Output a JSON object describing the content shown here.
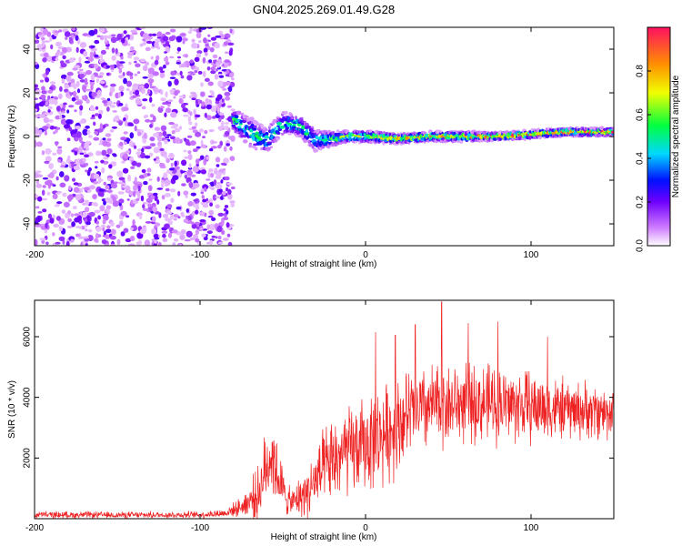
{
  "title": "GN04.2025.269.01.49.G28",
  "chart_data": [
    {
      "type": "heatmap",
      "title": "GN04.2025.269.01.49.G28",
      "xlabel": "Height of straight line (km)",
      "ylabel": "Frequency (Hz)",
      "xlim": [
        -200,
        150
      ],
      "ylim": [
        -50,
        50
      ],
      "xticks": [
        -200,
        -100,
        0,
        100
      ],
      "xtick_labels": [
        "-200",
        "-100",
        "0",
        "100"
      ],
      "yticks": [
        -40,
        -20,
        0,
        20,
        40
      ],
      "ytick_labels": [
        "-40",
        "-20",
        "0",
        "20",
        "40"
      ],
      "colorbar": {
        "label": "Normalized spectral amplitude",
        "range": [
          0.0,
          1.0
        ],
        "ticks": [
          0.0,
          0.2,
          0.4,
          0.6,
          0.8
        ],
        "tick_labels": [
          "0.0",
          "0.2",
          "0.4",
          "0.6",
          "0.8"
        ]
      },
      "noise_region_end_km": -80,
      "signal_track": [
        {
          "x": -80,
          "freq": 8,
          "spread": 6,
          "amp": 0.55
        },
        {
          "x": -70,
          "freq": 2,
          "spread": 8,
          "amp": 0.5
        },
        {
          "x": -60,
          "freq": -2,
          "spread": 7,
          "amp": 0.5
        },
        {
          "x": -50,
          "freq": 6,
          "spread": 6,
          "amp": 0.5
        },
        {
          "x": -40,
          "freq": 5,
          "spread": 6,
          "amp": 0.55
        },
        {
          "x": -30,
          "freq": -2,
          "spread": 6,
          "amp": 0.5
        },
        {
          "x": -20,
          "freq": -1,
          "spread": 4,
          "amp": 0.6
        },
        {
          "x": -10,
          "freq": 0,
          "spread": 3,
          "amp": 0.65
        },
        {
          "x": 0,
          "freq": 0,
          "spread": 3,
          "amp": 0.7
        },
        {
          "x": 20,
          "freq": -1,
          "spread": 2.5,
          "amp": 0.8
        },
        {
          "x": 40,
          "freq": 0,
          "spread": 2.5,
          "amp": 0.85
        },
        {
          "x": 60,
          "freq": 0,
          "spread": 2.5,
          "amp": 0.85
        },
        {
          "x": 80,
          "freq": 0,
          "spread": 2,
          "amp": 0.9
        },
        {
          "x": 100,
          "freq": 1,
          "spread": 2,
          "amp": 0.95
        },
        {
          "x": 120,
          "freq": 2,
          "spread": 2,
          "amp": 0.95
        },
        {
          "x": 150,
          "freq": 2,
          "spread": 2,
          "amp": 0.95
        }
      ]
    },
    {
      "type": "line",
      "xlabel": "Height of straight line (km)",
      "ylabel": "SNR (10 * v/v)",
      "xlim": [
        -200,
        150
      ],
      "ylim": [
        0,
        7200
      ],
      "xticks": [
        -200,
        -100,
        0,
        100
      ],
      "xtick_labels": [
        "-200",
        "-100",
        "0",
        "100"
      ],
      "yticks": [
        2000,
        4000,
        6000
      ],
      "ytick_labels": [
        "2000",
        "4000",
        "6000"
      ],
      "color": "#ee2222",
      "series": [
        {
          "name": "SNR",
          "envelope": [
            {
              "x": -200,
              "mean": 130,
              "spread": 120
            },
            {
              "x": -150,
              "mean": 120,
              "spread": 110
            },
            {
              "x": -100,
              "mean": 130,
              "spread": 110
            },
            {
              "x": -85,
              "mean": 180,
              "spread": 150
            },
            {
              "x": -75,
              "mean": 400,
              "spread": 300
            },
            {
              "x": -65,
              "mean": 800,
              "spread": 900
            },
            {
              "x": -57,
              "mean": 2200,
              "spread": 1500
            },
            {
              "x": -50,
              "mean": 900,
              "spread": 800
            },
            {
              "x": -45,
              "mean": 500,
              "spread": 400
            },
            {
              "x": -35,
              "mean": 900,
              "spread": 900
            },
            {
              "x": -25,
              "mean": 1600,
              "spread": 1300
            },
            {
              "x": -15,
              "mean": 2100,
              "spread": 1500
            },
            {
              "x": -5,
              "mean": 2300,
              "spread": 1500
            },
            {
              "x": 5,
              "mean": 2600,
              "spread": 1600
            },
            {
              "x": 15,
              "mean": 2900,
              "spread": 1600
            },
            {
              "x": 25,
              "mean": 3400,
              "spread": 1500
            },
            {
              "x": 40,
              "mean": 3700,
              "spread": 1400
            },
            {
              "x": 60,
              "mean": 3800,
              "spread": 1300
            },
            {
              "x": 80,
              "mean": 3800,
              "spread": 1300
            },
            {
              "x": 100,
              "mean": 3700,
              "spread": 1200
            },
            {
              "x": 120,
              "mean": 3600,
              "spread": 1000
            },
            {
              "x": 150,
              "mean": 3500,
              "spread": 900
            }
          ],
          "peaks": [
            {
              "x": 6,
              "y": 6150
            },
            {
              "x": 18,
              "y": 6050
            },
            {
              "x": 30,
              "y": 6400
            },
            {
              "x": 46,
              "y": 7150
            },
            {
              "x": 62,
              "y": 6450
            },
            {
              "x": 80,
              "y": 6500
            },
            {
              "x": 110,
              "y": 6000
            }
          ]
        }
      ]
    }
  ]
}
